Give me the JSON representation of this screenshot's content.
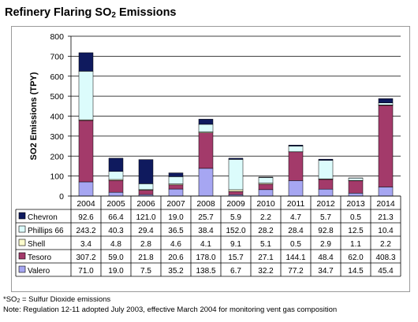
{
  "title": {
    "prefix": "Refinery Flaring SO",
    "sub": "2",
    "suffix": " Emissions"
  },
  "footnotes": {
    "line1_prefix": "*SO",
    "line1_sub": "2",
    "line1_suffix": " = Sulfur Dioxide emissions",
    "line2": "Note: Regulation 12-11 adopted July 2003, effective March 2004 for monitoring vent gas composition"
  },
  "colors": {
    "Chevron": "#0f1a5e",
    "Phillips 66": "#dcfcfc",
    "Shell": "#fdfccc",
    "Tesoro": "#a33a6a",
    "Valero": "#a6a6f2",
    "plot_background": "#ffffff",
    "gridline": "#000000",
    "table_border": "#000000"
  },
  "chart_data": {
    "type": "bar",
    "stacked": true,
    "title": "Refinery Flaring SO2 Emissions",
    "ylabel": "SO2 Emissions (TPY)",
    "xlabel": "",
    "ylim": [
      0,
      800
    ],
    "yticks": [
      0,
      100,
      200,
      300,
      400,
      500,
      600,
      700,
      800
    ],
    "grid": "horizontal",
    "legend_placement": "data table rows below the chart",
    "categories": [
      "2004",
      "2005",
      "2006",
      "2007",
      "2008",
      "2009",
      "2010",
      "2011",
      "2012",
      "2013",
      "2014"
    ],
    "series": [
      {
        "name": "Chevron",
        "values": [
          92.6,
          66.4,
          121.0,
          19.0,
          25.7,
          5.9,
          2.2,
          4.7,
          5.7,
          0.5,
          21.3
        ]
      },
      {
        "name": "Phillips 66",
        "values": [
          243.2,
          40.3,
          29.4,
          36.5,
          38.4,
          152.0,
          28.2,
          28.4,
          92.8,
          12.5,
          10.4
        ]
      },
      {
        "name": "Shell",
        "values": [
          3.4,
          4.8,
          2.8,
          4.6,
          4.1,
          9.1,
          5.1,
          0.5,
          2.9,
          1.1,
          2.2
        ]
      },
      {
        "name": "Tesoro",
        "values": [
          307.2,
          59.0,
          21.8,
          20.6,
          178.0,
          15.7,
          27.1,
          144.1,
          48.4,
          62.0,
          408.3
        ]
      },
      {
        "name": "Valero",
        "values": [
          71.0,
          19.0,
          7.5,
          35.2,
          138.5,
          6.7,
          32.2,
          77.2,
          34.7,
          14.5,
          45.4
        ]
      }
    ],
    "table_values": [
      [
        "92.6",
        "66.4",
        "121.0",
        "19.0",
        "25.7",
        "5.9",
        "2.2",
        "4.7",
        "5.7",
        "0.5",
        "21.3"
      ],
      [
        "243.2",
        "40.3",
        "29.4",
        "36.5",
        "38.4",
        "152.0",
        "28.2",
        "28.4",
        "92.8",
        "12.5",
        "10.4"
      ],
      [
        "3.4",
        "4.8",
        "2.8",
        "4.6",
        "4.1",
        "9.1",
        "5.1",
        "0.5",
        "2.9",
        "1.1",
        "2.2"
      ],
      [
        "307.2",
        "59.0",
        "21.8",
        "20.6",
        "178.0",
        "15.7",
        "27.1",
        "144.1",
        "48.4",
        "62.0",
        "408.3"
      ],
      [
        "71.0",
        "19.0",
        "7.5",
        "35.2",
        "138.5",
        "6.7",
        "32.2",
        "77.2",
        "34.7",
        "14.5",
        "45.4"
      ]
    ]
  }
}
